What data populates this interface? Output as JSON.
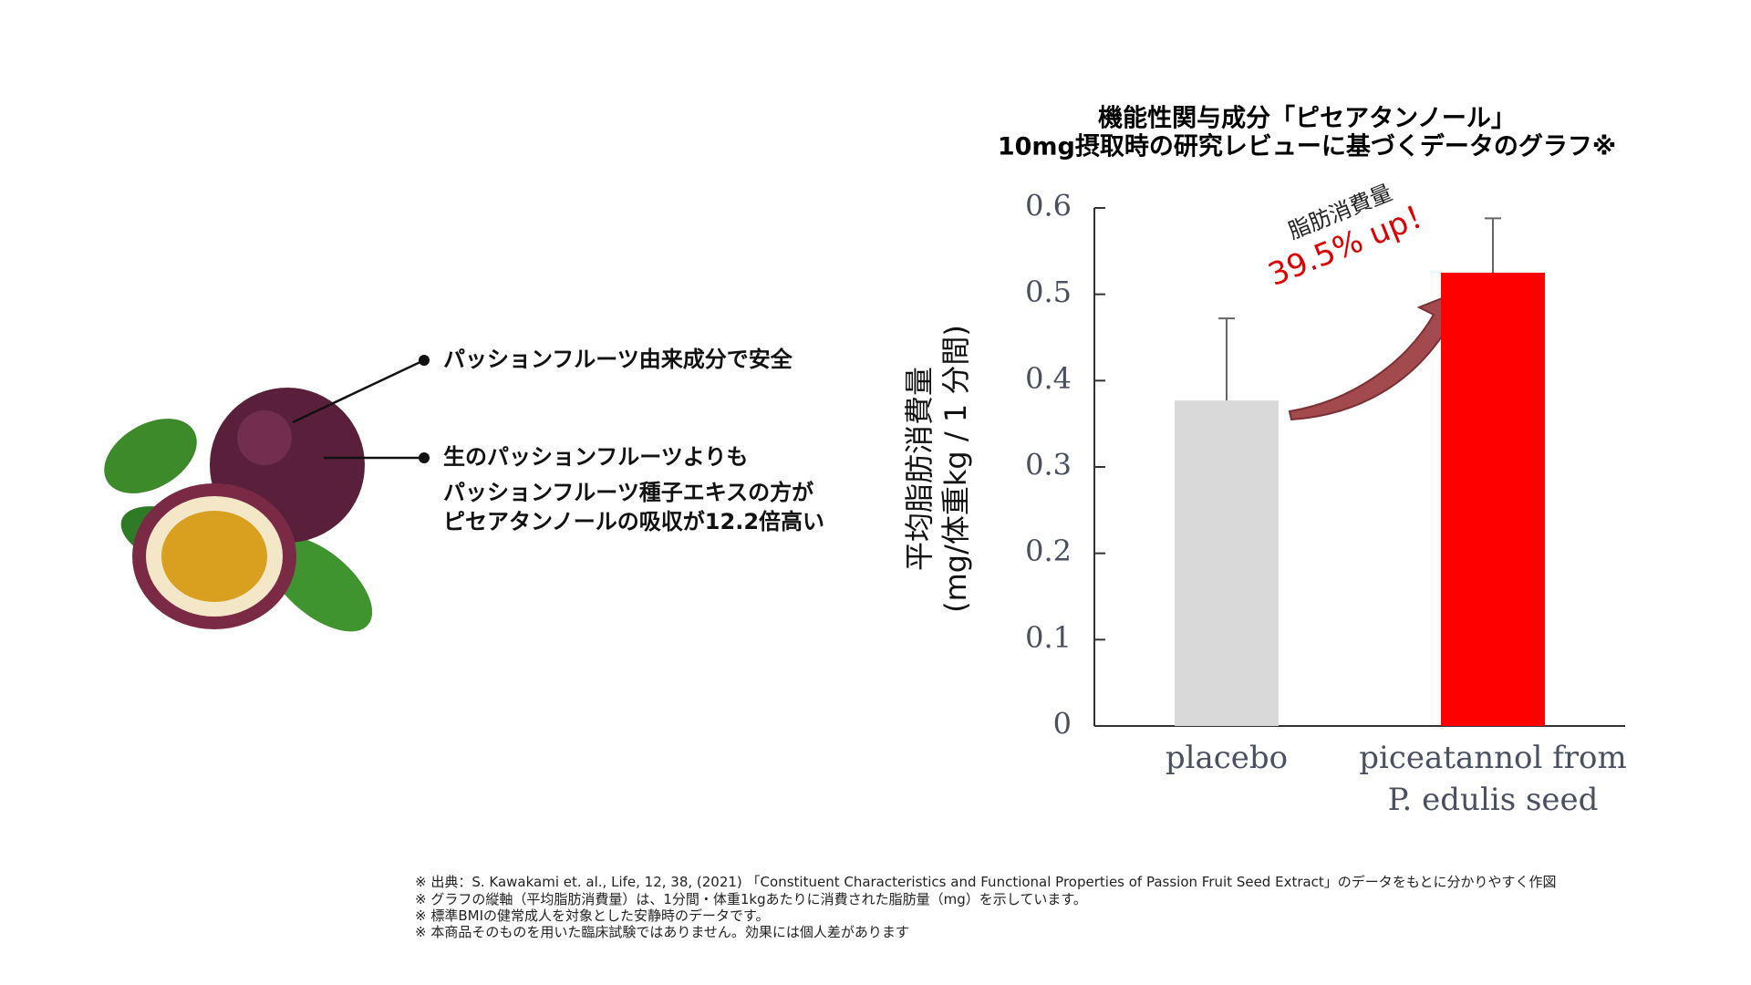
{
  "bullets": [
    "パッションフルーツ由来成分で安全",
    [
      "生のパッションフルーツよりも",
      "パッションフルーツ種子エキスの方が",
      "ピセアタンノールの吸収が12.2倍高い"
    ]
  ],
  "chart_data": {
    "type": "bar",
    "title": [
      "機能性関与成分「ピセアタンノール」",
      "10mg摂取時の研究レビューに基づくデータのグラフ※"
    ],
    "ylabel": [
      "平均脂肪消費量",
      "(mg/体重kg / 1 分間)"
    ],
    "categories": [
      "placebo",
      "piceatannol from P. edulis seed"
    ],
    "values": [
      0.377,
      0.525
    ],
    "errors": [
      0.095,
      0.063
    ],
    "colors": [
      "#d9d9d9",
      "#ff0000"
    ],
    "ylim": [
      0,
      0.6
    ],
    "yticks": [
      0,
      0.1,
      0.2,
      0.3,
      0.4,
      0.5,
      0.6
    ],
    "annotation": [
      "脂肪消費量",
      "39.5% up！"
    ]
  },
  "footnotes": [
    "※ 出典：S. Kawakami et. al., Life, 12, 38, (2021) 「Constituent Characteristics and Functional Properties of Passion Fruit Seed Extract」のデータをもとに分かりやすく作図",
    "※ グラフの縦軸（平均脂肪消費量）は、1分間・体重1kgあたりに消費された脂肪量（mg）を示しています。",
    "※ 標準BMIの健常成人を対象とした安静時のデータです。",
    "※ 本商品そのものを用いた臨床試験ではありません。効果には個人差があります"
  ]
}
